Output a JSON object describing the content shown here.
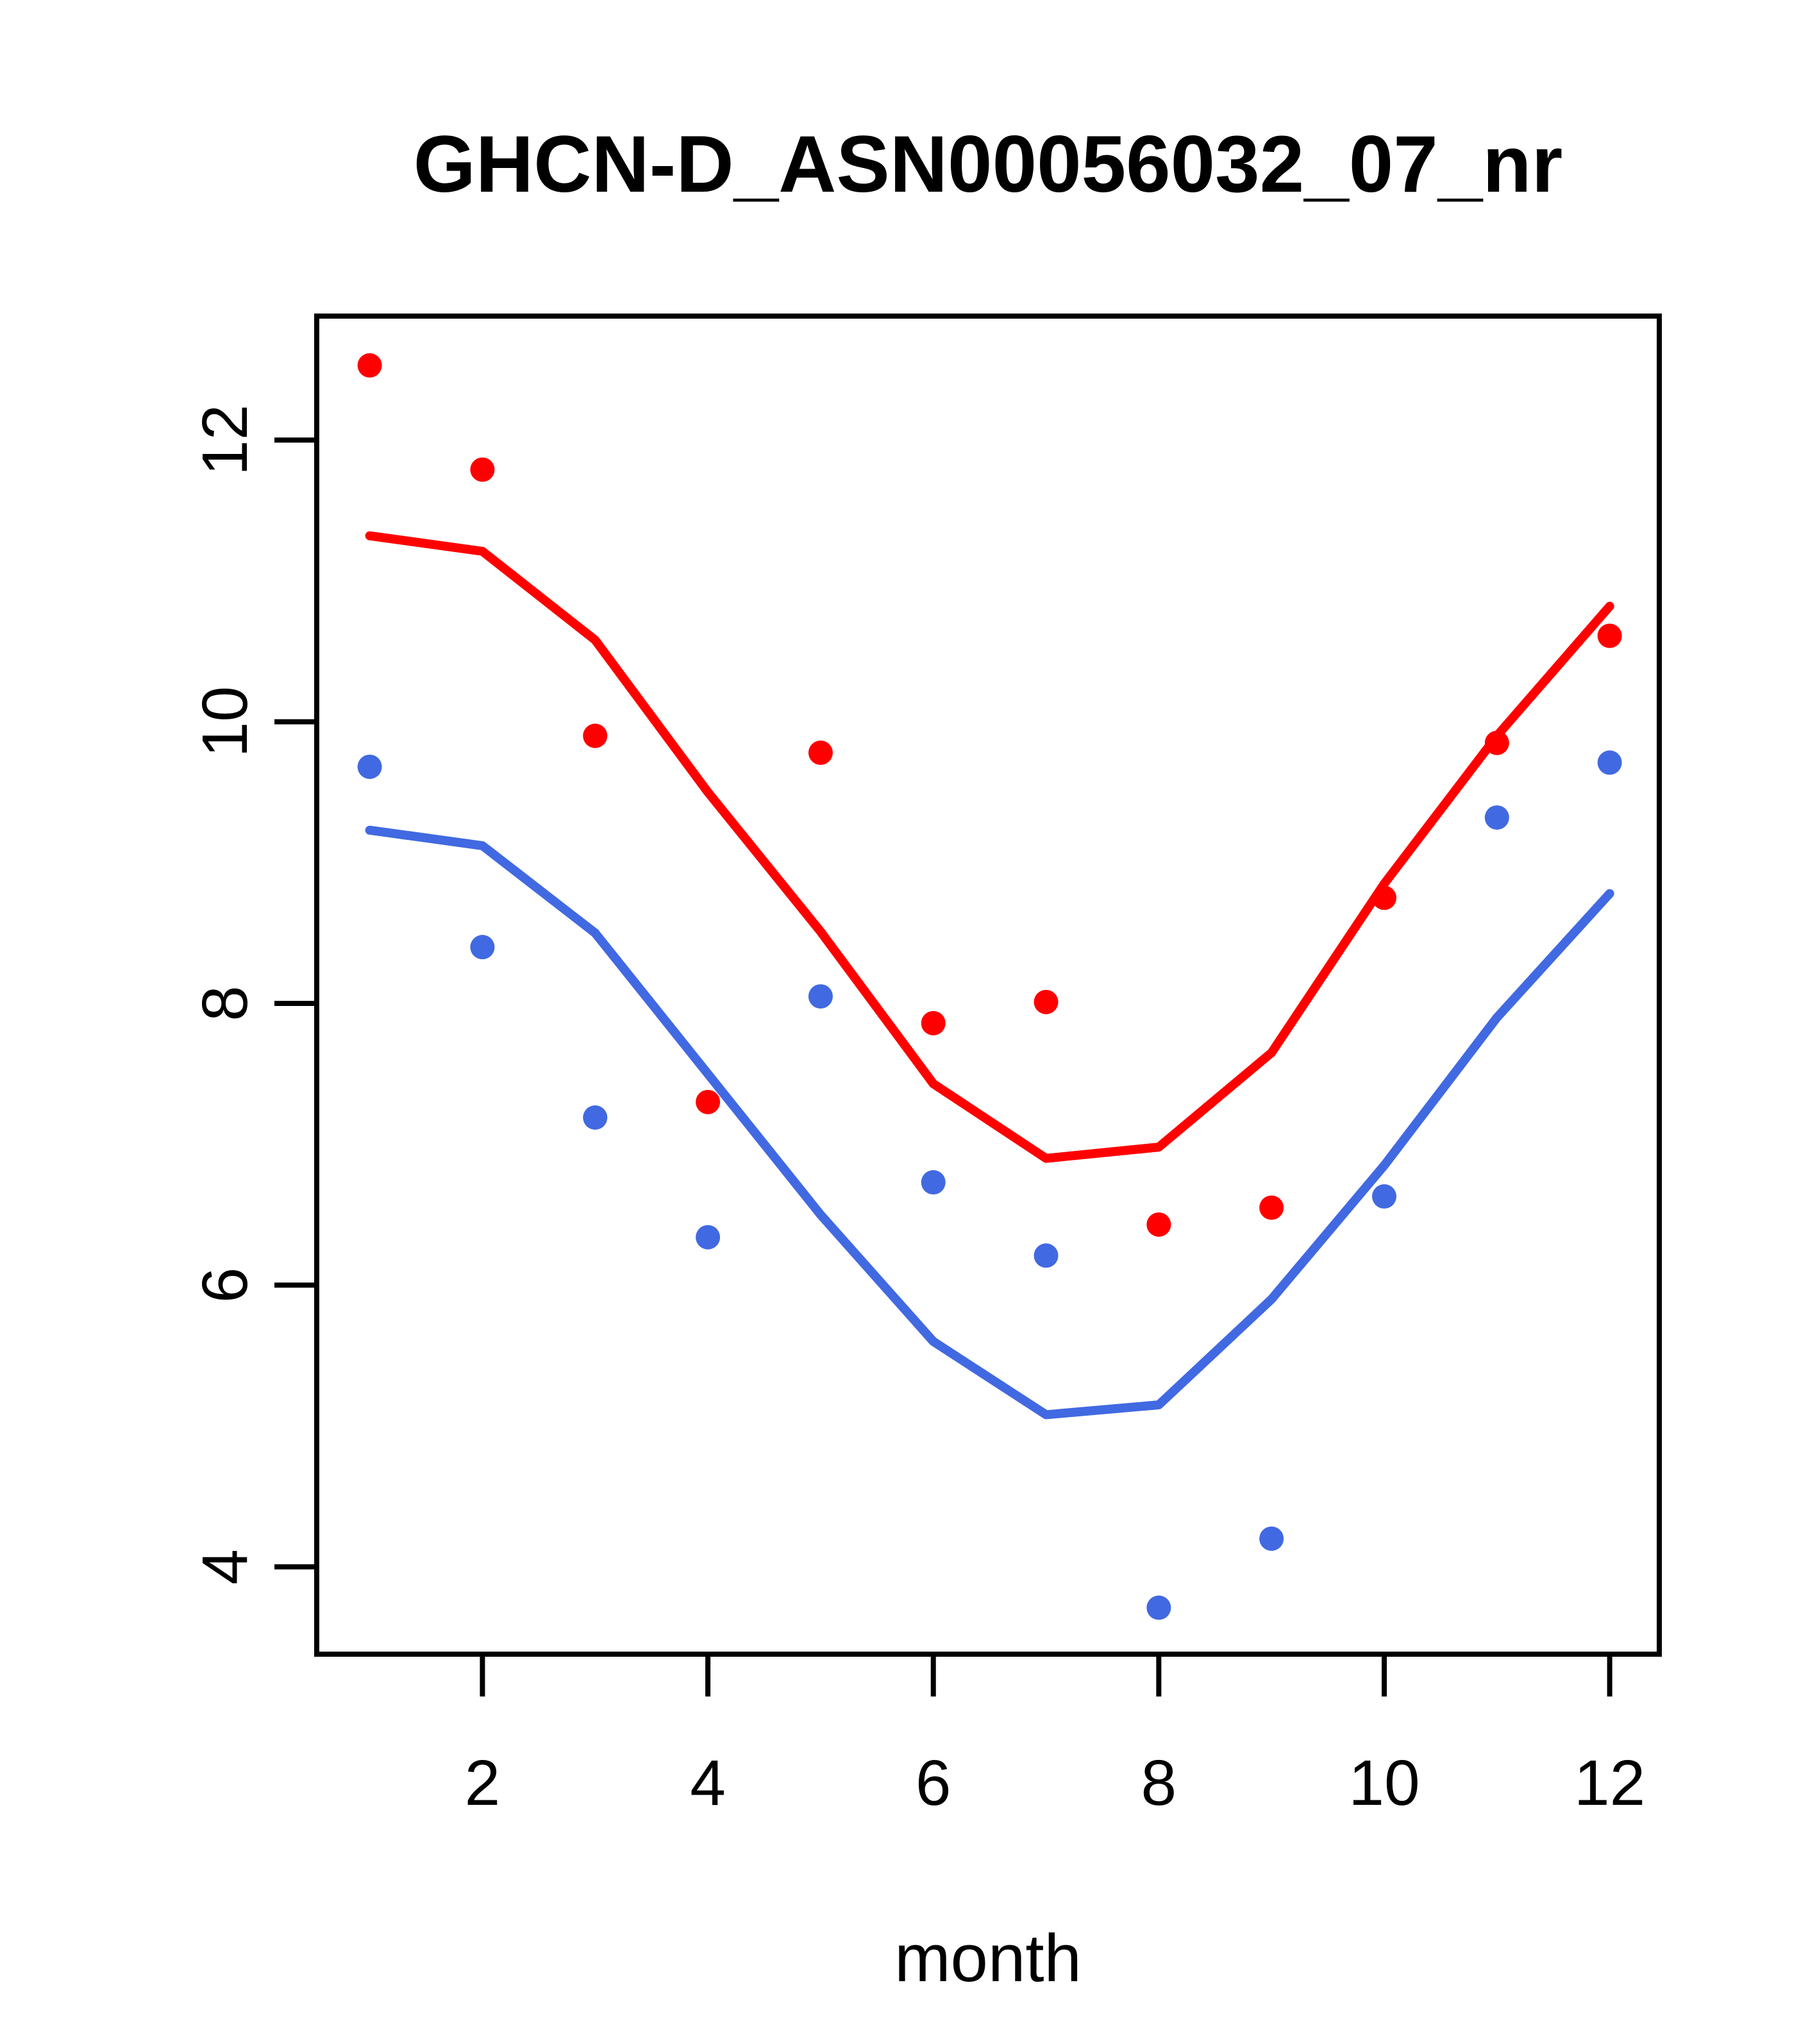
{
  "title": "GHCN-D_ASN00056032_07_nr",
  "chart_data": {
    "type": "line",
    "title": "GHCN-D_ASN00056032_07_nr",
    "xlabel": "month",
    "ylabel": "",
    "x": [
      1,
      2,
      3,
      4,
      5,
      6,
      7,
      8,
      9,
      10,
      11,
      12
    ],
    "series": [
      {
        "name": "red-observations",
        "kind": "scatter",
        "color": "#FF0000",
        "values": [
          12.53,
          11.79,
          9.9,
          7.3,
          9.78,
          7.86,
          8.01,
          6.43,
          6.55,
          8.75,
          9.85,
          10.61
        ]
      },
      {
        "name": "red-smooth-line",
        "kind": "line",
        "color": "#FF0000",
        "values": [
          11.32,
          11.21,
          10.58,
          9.5,
          8.51,
          7.43,
          6.9,
          6.98,
          7.65,
          8.85,
          9.9,
          10.82
        ]
      },
      {
        "name": "blue-observations",
        "kind": "scatter",
        "color": "#4169E1",
        "values": [
          9.68,
          8.4,
          7.19,
          6.34,
          8.05,
          6.73,
          6.21,
          3.71,
          4.2,
          6.63,
          9.32,
          9.71
        ]
      },
      {
        "name": "blue-smooth-line",
        "kind": "line",
        "color": "#4169E1",
        "values": [
          9.23,
          9.12,
          8.5,
          7.5,
          6.5,
          5.6,
          5.08,
          5.15,
          5.9,
          6.85,
          7.9,
          8.78
        ]
      }
    ],
    "xticks": [
      2,
      4,
      6,
      8,
      10,
      12
    ],
    "yticks": [
      4,
      6,
      8,
      10,
      12
    ],
    "xlim": [
      0.53,
      12.44
    ],
    "ylim": [
      3.38,
      12.88
    ],
    "grid": false,
    "legend": "none",
    "axis_color": "#000000",
    "background_color": "#FFFFFF"
  }
}
